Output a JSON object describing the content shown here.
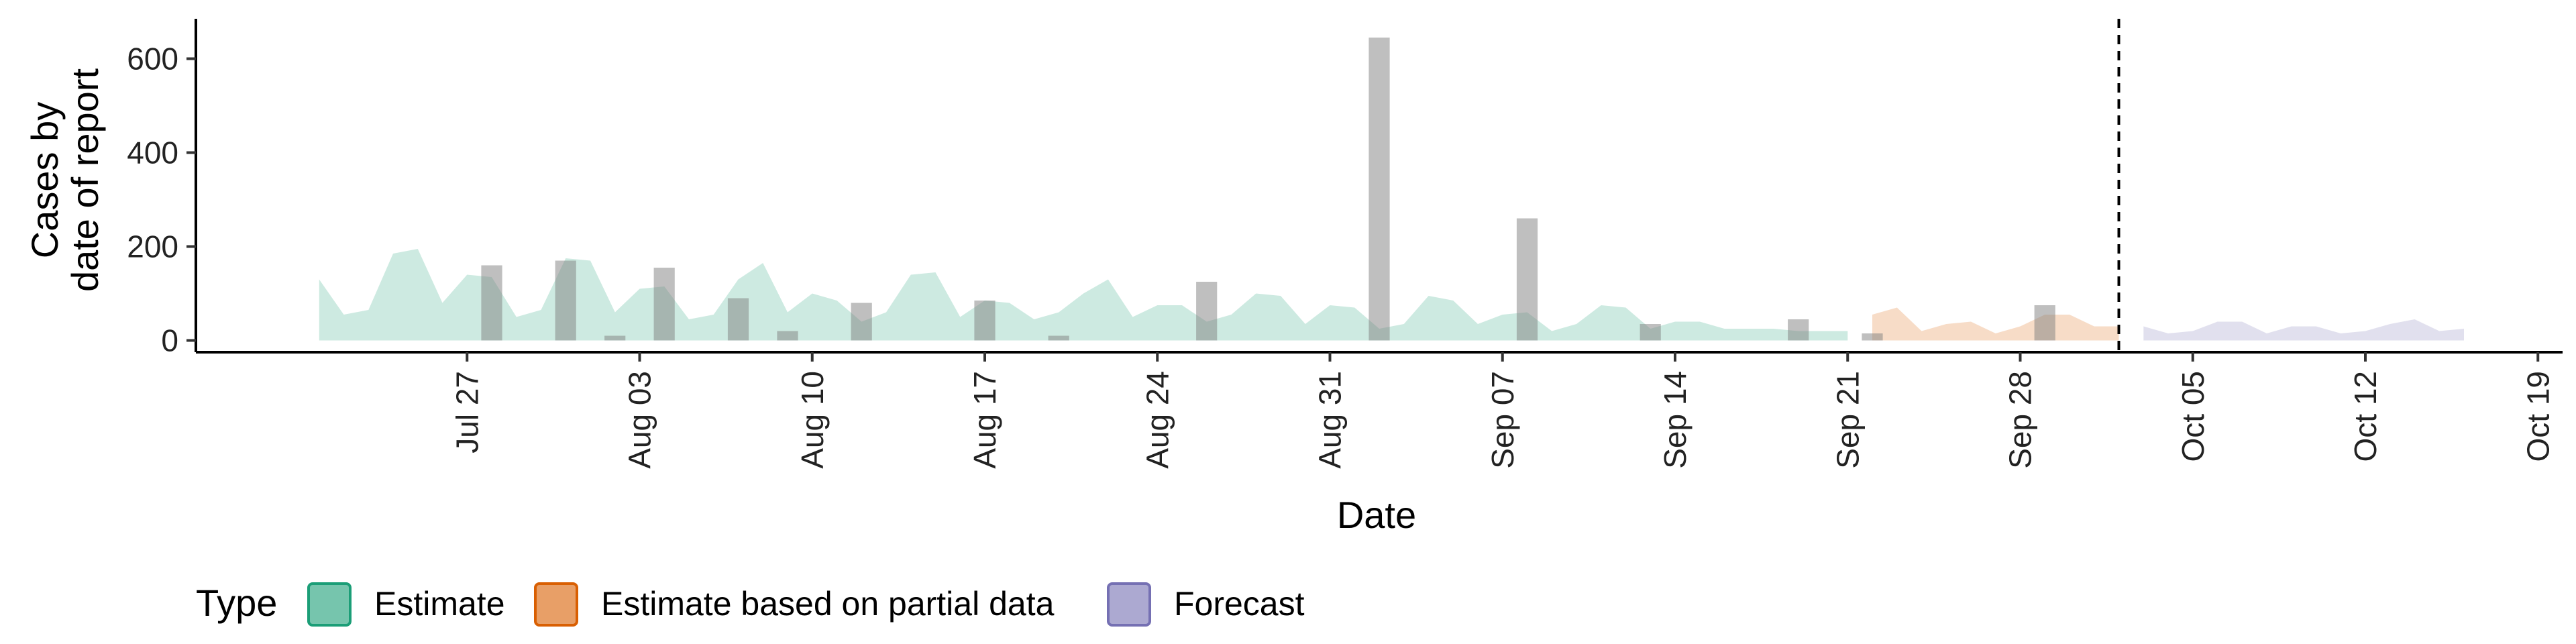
{
  "chart_data": {
    "type": "area",
    "xlabel": "Date",
    "ylabel": [
      "Cases by",
      "date of report"
    ],
    "ylim": [
      -25,
      685
    ],
    "yticks": [
      0,
      200,
      400,
      600
    ],
    "xlim": [
      "2020-07-16",
      "2020-10-20"
    ],
    "xticks": [
      {
        "date": "2020-07-27",
        "label": "Jul 27"
      },
      {
        "date": "2020-08-03",
        "label": "Aug 03"
      },
      {
        "date": "2020-08-10",
        "label": "Aug 10"
      },
      {
        "date": "2020-08-17",
        "label": "Aug 17"
      },
      {
        "date": "2020-08-24",
        "label": "Aug 24"
      },
      {
        "date": "2020-08-31",
        "label": "Aug 31"
      },
      {
        "date": "2020-09-07",
        "label": "Sep 07"
      },
      {
        "date": "2020-09-14",
        "label": "Sep 14"
      },
      {
        "date": "2020-09-21",
        "label": "Sep 21"
      },
      {
        "date": "2020-09-28",
        "label": "Sep 28"
      },
      {
        "date": "2020-10-05",
        "label": "Oct 05"
      },
      {
        "date": "2020-10-12",
        "label": "Oct 12"
      },
      {
        "date": "2020-10-19",
        "label": "Oct 19"
      }
    ],
    "forecast_date": "2020-10-02",
    "grid": false,
    "legend_position": "bottom-left",
    "legend_title": "Type",
    "series": [
      {
        "name": "Estimate",
        "color": "#1B9E77",
        "x": [
          "2020-07-21",
          "2020-07-22",
          "2020-07-23",
          "2020-07-24",
          "2020-07-25",
          "2020-07-26",
          "2020-07-27",
          "2020-07-28",
          "2020-07-29",
          "2020-07-30",
          "2020-07-31",
          "2020-08-01",
          "2020-08-02",
          "2020-08-03",
          "2020-08-04",
          "2020-08-05",
          "2020-08-06",
          "2020-08-07",
          "2020-08-08",
          "2020-08-09",
          "2020-08-10",
          "2020-08-11",
          "2020-08-12",
          "2020-08-13",
          "2020-08-14",
          "2020-08-15",
          "2020-08-16",
          "2020-08-17",
          "2020-08-18",
          "2020-08-19",
          "2020-08-20",
          "2020-08-21",
          "2020-08-22",
          "2020-08-23",
          "2020-08-24",
          "2020-08-25",
          "2020-08-26",
          "2020-08-27",
          "2020-08-28",
          "2020-08-29",
          "2020-08-30",
          "2020-08-31",
          "2020-09-01",
          "2020-09-02",
          "2020-09-03",
          "2020-09-04",
          "2020-09-05",
          "2020-09-06",
          "2020-09-07",
          "2020-09-08",
          "2020-09-09",
          "2020-09-10",
          "2020-09-11",
          "2020-09-12",
          "2020-09-13",
          "2020-09-14",
          "2020-09-15",
          "2020-09-16",
          "2020-09-17",
          "2020-09-18",
          "2020-09-19",
          "2020-09-20",
          "2020-09-21"
        ],
        "values": [
          130,
          55,
          65,
          185,
          195,
          80,
          140,
          135,
          50,
          65,
          175,
          170,
          60,
          110,
          115,
          45,
          55,
          130,
          165,
          60,
          100,
          85,
          40,
          60,
          140,
          145,
          50,
          85,
          80,
          45,
          60,
          100,
          130,
          50,
          75,
          75,
          40,
          55,
          100,
          95,
          35,
          75,
          70,
          25,
          35,
          95,
          85,
          35,
          55,
          60,
          20,
          35,
          75,
          70,
          25,
          40,
          40,
          25,
          25,
          25,
          20,
          20,
          20
        ],
        "lower": [
          0,
          0,
          0,
          0,
          0,
          0,
          0,
          0,
          0,
          0,
          0,
          0,
          0,
          0,
          0,
          0,
          0,
          0,
          0,
          0,
          0,
          0,
          0,
          0,
          0,
          0,
          0,
          0,
          0,
          0,
          0,
          0,
          0,
          0,
          0,
          0,
          0,
          0,
          0,
          0,
          0,
          0,
          0,
          0,
          0,
          0,
          0,
          0,
          0,
          0,
          0,
          0,
          0,
          0,
          0,
          0,
          0,
          0,
          0,
          0,
          0,
          0,
          0
        ]
      },
      {
        "name": "Estimate based on partial data",
        "color": "#D95F02",
        "x": [
          "2020-09-22",
          "2020-09-23",
          "2020-09-24",
          "2020-09-25",
          "2020-09-26",
          "2020-09-27",
          "2020-09-28",
          "2020-09-29",
          "2020-09-30",
          "2020-10-01",
          "2020-10-02"
        ],
        "values": [
          55,
          70,
          20,
          35,
          40,
          15,
          30,
          55,
          55,
          30,
          30
        ],
        "lower": [
          0,
          0,
          0,
          0,
          0,
          0,
          0,
          0,
          0,
          0,
          0
        ]
      },
      {
        "name": "Forecast",
        "color": "#7570B3",
        "x": [
          "2020-10-03",
          "2020-10-04",
          "2020-10-05",
          "2020-10-06",
          "2020-10-07",
          "2020-10-08",
          "2020-10-09",
          "2020-10-10",
          "2020-10-11",
          "2020-10-12",
          "2020-10-13",
          "2020-10-14",
          "2020-10-15",
          "2020-10-16"
        ],
        "values": [
          30,
          15,
          20,
          40,
          40,
          15,
          30,
          30,
          15,
          20,
          35,
          45,
          20,
          25
        ],
        "lower": [
          0,
          0,
          0,
          0,
          0,
          0,
          0,
          0,
          0,
          0,
          0,
          0,
          0,
          0
        ]
      }
    ],
    "bars": {
      "name": "Cases by date of report",
      "color": "#808080",
      "x": [
        "2020-07-28",
        "2020-07-31",
        "2020-08-02",
        "2020-08-04",
        "2020-08-07",
        "2020-08-09",
        "2020-08-12",
        "2020-08-17",
        "2020-08-20",
        "2020-08-26",
        "2020-09-02",
        "2020-09-08",
        "2020-09-13",
        "2020-09-19",
        "2020-09-22",
        "2020-09-29"
      ],
      "values": [
        160,
        170,
        10,
        155,
        90,
        20,
        80,
        85,
        10,
        125,
        645,
        260,
        35,
        45,
        15,
        75
      ]
    }
  }
}
